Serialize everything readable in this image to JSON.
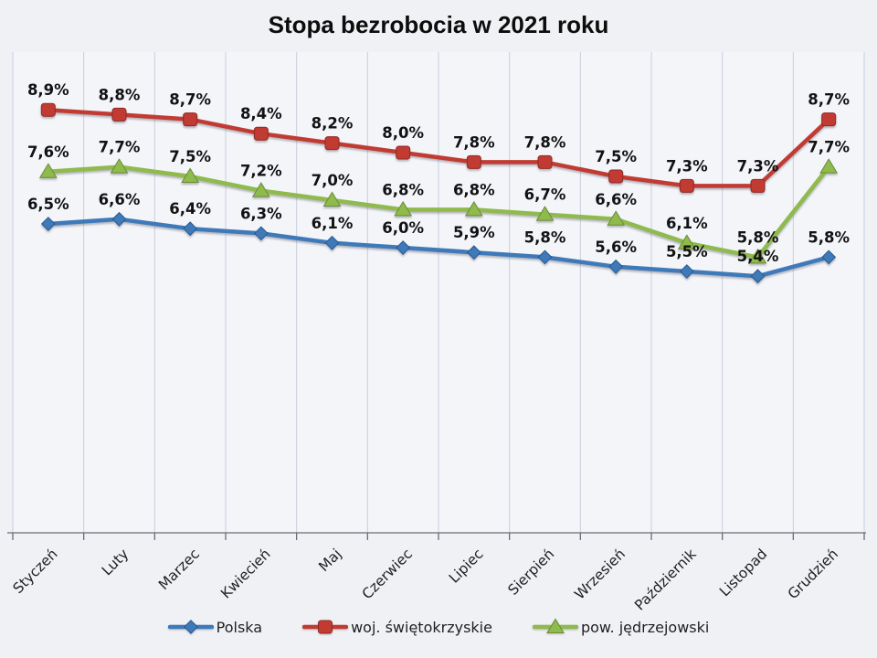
{
  "chart_data": {
    "type": "line",
    "title": "Stopa bezrobocia w 2021 roku",
    "categories": [
      "Styczeń",
      "Luty",
      "Marzec",
      "Kwiecień",
      "Maj",
      "Czerwiec",
      "Lipiec",
      "Sierpień",
      "Wrzesień",
      "Październik",
      "Listopad",
      "Grudzień"
    ],
    "series": [
      {
        "id": "polska",
        "name": "Polska",
        "marker": "diamond",
        "color": "#3e79b9",
        "edge": "#28598e",
        "values": [
          6.5,
          6.6,
          6.4,
          6.3,
          6.1,
          6.0,
          5.9,
          5.8,
          5.6,
          5.5,
          5.4,
          5.8
        ]
      },
      {
        "id": "woj-swietokrzyskie",
        "name": "woj. świętokrzyskie",
        "marker": "square",
        "color": "#c13b32",
        "edge": "#8f2a24",
        "values": [
          8.9,
          8.8,
          8.7,
          8.4,
          8.2,
          8.0,
          7.8,
          7.8,
          7.5,
          7.3,
          7.3,
          8.7
        ]
      },
      {
        "id": "pow-jedrzejowski",
        "name": "pow. jędrzejowski",
        "marker": "triangle",
        "color": "#8fba4c",
        "edge": "#6a8c37",
        "values": [
          7.6,
          7.7,
          7.5,
          7.2,
          7.0,
          6.8,
          6.8,
          6.7,
          6.6,
          6.1,
          5.8,
          7.7
        ]
      }
    ],
    "labels_format": "comma-decimal-percent",
    "ylim": [
      0,
      10
    ],
    "grid": "vertical-only",
    "legend_position": "bottom",
    "style": {
      "background": "#f0f1f5",
      "plot_fill": "#f4f5f9",
      "gridline": "#c9cede",
      "axis": "#6b6b73",
      "tick": "#6b6b73",
      "data_label_color": "#121212",
      "axis_label_color": "#1f1f1f",
      "title_color": "#0d0d0d"
    }
  }
}
